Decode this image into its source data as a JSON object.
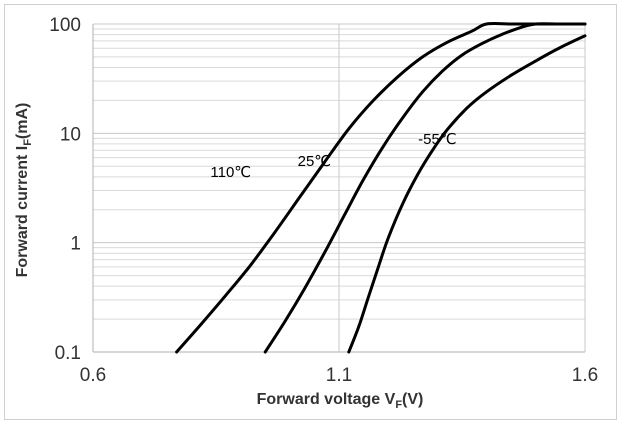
{
  "chart_data": {
    "type": "line",
    "x_scale": "linear",
    "y_scale": "log",
    "xlim": [
      0.6,
      1.6
    ],
    "ylim": [
      0.1,
      100
    ],
    "x_ticks": [
      "0.6",
      "1.1",
      "1.6"
    ],
    "y_ticks": [
      "0.1",
      "1",
      "10",
      "100"
    ],
    "xlabel_main": "Forward voltage V",
    "xlabel_sub": "F",
    "xlabel_tail": "(V)",
    "ylabel_main": "Forward current I",
    "ylabel_sub": "F",
    "ylabel_tail": "(mA)",
    "grid": {
      "horizontal_minor": true,
      "vertical_major": true
    },
    "series": [
      {
        "name": "110℃",
        "x": [
          0.77,
          0.82,
          0.87,
          0.92,
          0.97,
          1.02,
          1.07,
          1.12,
          1.17,
          1.22,
          1.27,
          1.32,
          1.37,
          1.4,
          1.45,
          1.5,
          1.55,
          1.6
        ],
        "y": [
          0.1,
          0.18,
          0.33,
          0.62,
          1.25,
          2.6,
          5.4,
          11,
          20,
          33,
          50,
          68,
          86,
          100,
          100,
          100,
          100,
          100
        ]
      },
      {
        "name": "25℃",
        "x": [
          0.95,
          0.99,
          1.03,
          1.07,
          1.11,
          1.15,
          1.19,
          1.23,
          1.27,
          1.31,
          1.35,
          1.39,
          1.43,
          1.47,
          1.5,
          1.55,
          1.6
        ],
        "y": [
          0.1,
          0.19,
          0.38,
          0.8,
          1.75,
          3.8,
          7.6,
          14,
          24,
          37,
          52,
          66,
          80,
          93,
          100,
          100,
          100
        ]
      },
      {
        "name": "-55℃",
        "x": [
          1.12,
          1.14,
          1.16,
          1.18,
          1.2,
          1.23,
          1.26,
          1.29,
          1.32,
          1.36,
          1.4,
          1.45,
          1.5,
          1.55,
          1.6
        ],
        "y": [
          0.1,
          0.17,
          0.32,
          0.6,
          1.1,
          2.3,
          4.2,
          7.0,
          10.8,
          17,
          24,
          34,
          46,
          61,
          78
        ]
      }
    ],
    "curve_labels": [
      {
        "text": "110℃",
        "x": 0.88,
        "y": 4.0
      },
      {
        "text": "25℃",
        "x": 1.05,
        "y": 5.0
      },
      {
        "text": "-55℃",
        "x": 1.3,
        "y": 8.0
      }
    ],
    "colors": {
      "line": "#000000",
      "grid": "#d9d9d9",
      "axis": "#bfbfbf",
      "text": "#333333"
    }
  }
}
